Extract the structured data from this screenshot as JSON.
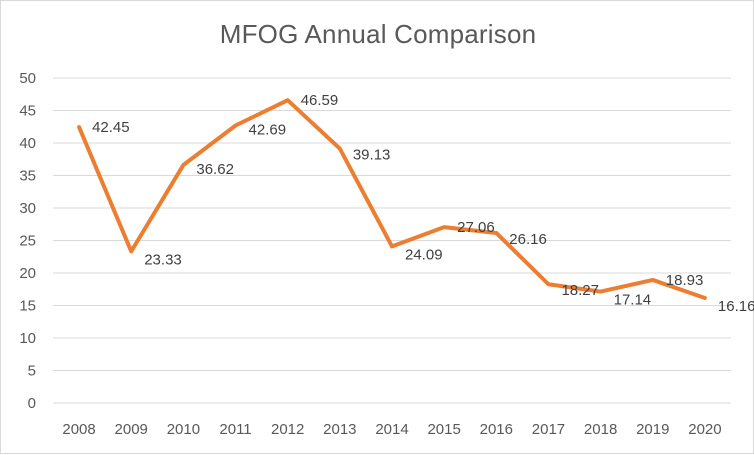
{
  "chart_data": {
    "type": "line",
    "title": "MFOG Annual Comparison",
    "xlabel": "",
    "ylabel": "",
    "categories": [
      "2008",
      "2009",
      "2010",
      "2011",
      "2012",
      "2013",
      "2014",
      "2015",
      "2016",
      "2017",
      "2018",
      "2019",
      "2020"
    ],
    "series": [
      {
        "values": [
          42.45,
          23.33,
          36.62,
          42.69,
          46.59,
          39.13,
          24.09,
          27.06,
          26.16,
          18.27,
          17.14,
          18.93,
          16.16
        ],
        "labels": [
          "42.45",
          "23.33",
          "36.62",
          "42.69",
          "46.59",
          "39.13",
          "24.09",
          "27.06",
          "26.16",
          "18.27",
          "17.14",
          "18.93",
          "16.16"
        ],
        "color": "#ED7D31"
      }
    ],
    "ylim": [
      0,
      50
    ],
    "yticks": [
      "0",
      "5",
      "10",
      "15",
      "20",
      "25",
      "30",
      "35",
      "40",
      "45",
      "50"
    ],
    "grid": true,
    "legend": "none",
    "gridline_color": "#d9d9d9",
    "text_color": "#595959"
  }
}
